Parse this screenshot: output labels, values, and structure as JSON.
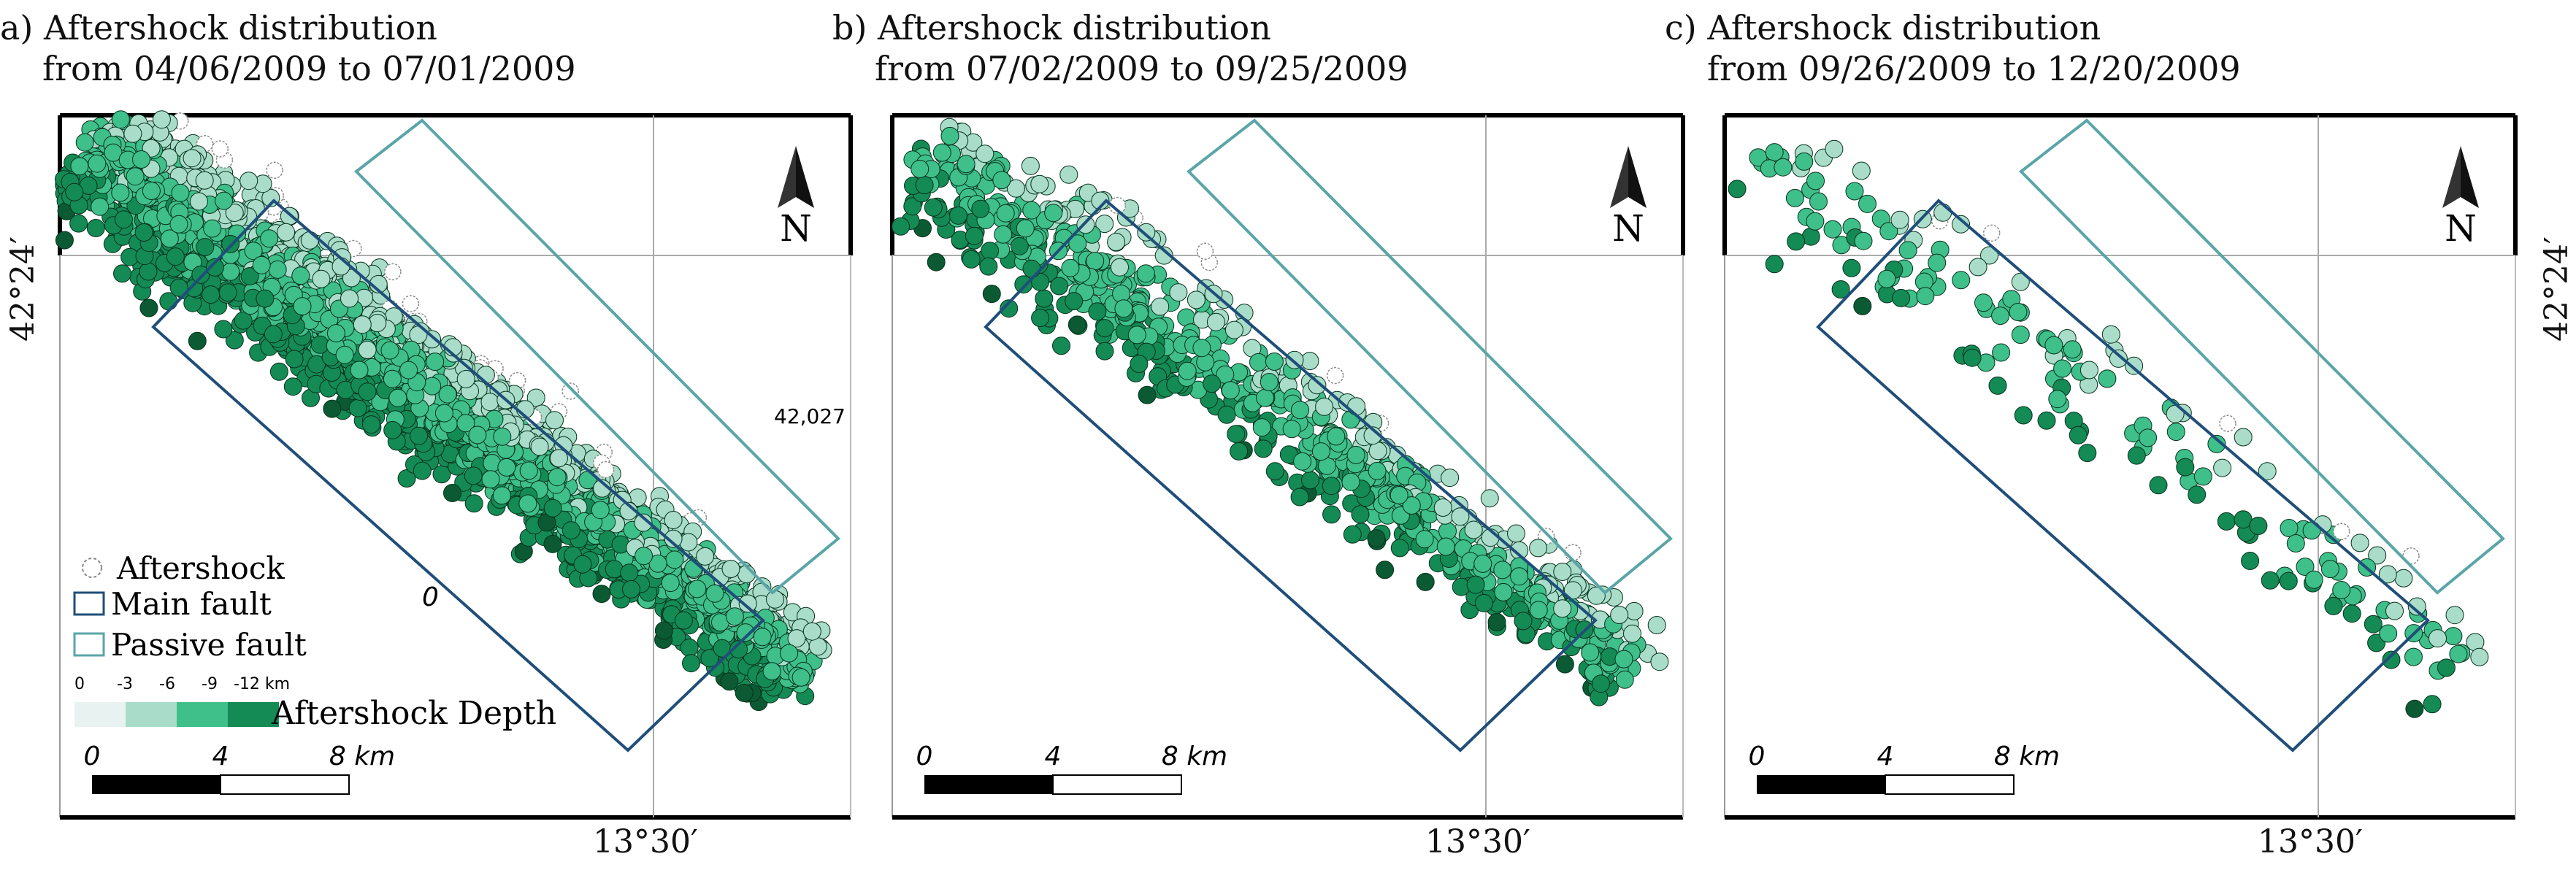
{
  "colors": {
    "main_fault": "#1f4e79",
    "passive_fault": "#5aa5a8",
    "depth_0_3": "#e8f3f1",
    "depth_3_6": "#a9dcc9",
    "depth_6_9": "#3fbf8a",
    "depth_9_12": "#148a55",
    "deep": "#0b5a33",
    "shallow_outline": "#8a8a8a"
  },
  "panels": [
    {
      "id": "a",
      "title_line1": "a) Aftershock distribution",
      "title_line2": "from 04/06/2009 to 07/01/2009",
      "density": 1.0,
      "north_label": "N",
      "lon_label": "13°30′",
      "lat_label": "42°24′",
      "point_label": "42,027",
      "zero_label": "0",
      "scale_ticks": [
        "0",
        "4",
        "8 km"
      ]
    },
    {
      "id": "b",
      "title_line1": "b) Aftershock distribution",
      "title_line2": "from 07/02/2009 to 09/25/2009",
      "density": 0.3,
      "north_label": "N",
      "lon_label": "13°30′",
      "scale_ticks": [
        "0",
        "4",
        "8 km"
      ]
    },
    {
      "id": "c",
      "title_line1": "c) Aftershock distribution",
      "title_line2": "from 09/26/2009 to 12/20/2009",
      "density": 0.07,
      "north_label": "N",
      "lon_label": "13°30′",
      "lat_label": "42°24′",
      "scale_ticks": [
        "0",
        "4",
        "8 km"
      ]
    }
  ],
  "legend": {
    "aftershock": "Aftershock",
    "main_fault": "Main fault",
    "passive_fault": "Passive fault",
    "depth_ticks": [
      "0",
      "-3",
      "-6",
      "-9",
      "-12 km"
    ],
    "depth_title": "Aftershock Depth"
  }
}
